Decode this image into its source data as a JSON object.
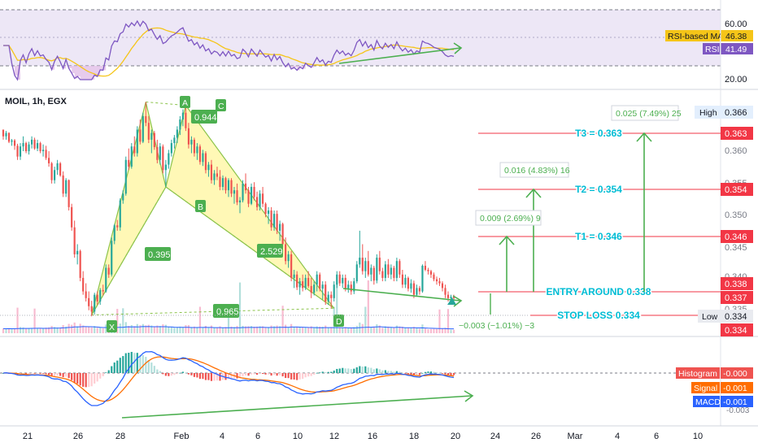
{
  "symbol": "MOIL, 1h, EGX",
  "colors": {
    "up": "#26a69a",
    "down": "#ef5350",
    "rsi": "#7e57c2",
    "rsi_ma": "#f5c518",
    "macd": "#2962ff",
    "signal": "#ff6d00",
    "harmonic_fill": "#fff59d",
    "harmonic_edge": "#8bc34a",
    "annotation_green": "#4caf50",
    "target_red": "#f23645",
    "label_cyan": "#00bcd4"
  },
  "rsi_panel": {
    "levels": [
      "60.00",
      "20.00"
    ],
    "labels": [
      {
        "name": "RSI-based MA",
        "value": "46.38"
      },
      {
        "name": "RSI",
        "value": "41.49"
      }
    ]
  },
  "price_axis_ticks": [
    "0.365",
    "0.360",
    "0.355",
    "0.350",
    "0.345",
    "0.340",
    "0.335"
  ],
  "price_tags": {
    "high": {
      "label": "High",
      "value": "0.366"
    },
    "low": {
      "label": "Low",
      "value": "0.334"
    },
    "t3": "0.363",
    "t2": "0.354",
    "t1": "0.346",
    "entry": "0.338",
    "current": "0.337",
    "stop": "0.334"
  },
  "levels_text": {
    "t3": "T3 = 0.363",
    "t2": "T2 = 0.354",
    "t1": "T1 = 0.346",
    "entry": "ENTRY AROUND 0.338",
    "stop": "STOP LOSS 0.334"
  },
  "measure_boxes": {
    "t3": "0.025 (7.49%) 25",
    "t2": "0.016 (4.83%) 16",
    "t1": "0.009 (2.69%) 9",
    "stop": "−0.003 (−1.01%) −3"
  },
  "pattern": {
    "points": [
      "X",
      "A",
      "B",
      "C",
      "D"
    ],
    "ratios": {
      "xb": "0.395",
      "ab_c": "0.944",
      "bd": "2.529",
      "xd": "0.965"
    }
  },
  "macd_panel": {
    "labels": [
      {
        "name": "Histogram",
        "value": "-0.000"
      },
      {
        "name": "Signal",
        "value": "-0.001"
      },
      {
        "name": "MACD",
        "value": "-0.001"
      }
    ],
    "axis_tail": "-0.003"
  },
  "x_axis_ticks": [
    "21",
    "26",
    "28",
    "Feb",
    "4",
    "6",
    "10",
    "12",
    "16",
    "18",
    "20",
    "24",
    "26",
    "Mar",
    "4",
    "6",
    "10"
  ],
  "chart_data": {
    "type": "candlestick",
    "title": "MOIL, 1h, EGX",
    "price_range": [
      0.333,
      0.367
    ],
    "timeline": "hourly candles from 21 Jan to 20 Feb (sequence index 0–159)",
    "pattern_points": [
      {
        "label": "X",
        "index": 31,
        "price": 0.3345
      },
      {
        "label": "A",
        "index": 50,
        "price": 0.3661
      },
      {
        "label": "B",
        "index": 57,
        "price": 0.3535
      },
      {
        "label": "C",
        "index": 64,
        "price": 0.3656
      },
      {
        "label": "D",
        "index": 116,
        "price": 0.3355
      }
    ],
    "candles": [
      [
        0.362,
        0.362,
        0.3605,
        0.361
      ],
      [
        0.361,
        0.3618,
        0.3605,
        0.3615
      ],
      [
        0.3615,
        0.3616,
        0.36,
        0.3602
      ],
      [
        0.3602,
        0.3606,
        0.3596,
        0.3604
      ],
      [
        0.3604,
        0.3606,
        0.359,
        0.3596
      ],
      [
        0.3596,
        0.3599,
        0.3575,
        0.358
      ],
      [
        0.358,
        0.36,
        0.3575,
        0.3595
      ],
      [
        0.3595,
        0.361,
        0.3588,
        0.36
      ],
      [
        0.36,
        0.3602,
        0.3585,
        0.3588
      ],
      [
        0.3588,
        0.3602,
        0.3583,
        0.3598
      ],
      [
        0.3598,
        0.361,
        0.3592,
        0.3605
      ],
      [
        0.3605,
        0.3608,
        0.359,
        0.3592
      ],
      [
        0.3592,
        0.3605,
        0.3588,
        0.36
      ],
      [
        0.36,
        0.3602,
        0.3585,
        0.3588
      ],
      [
        0.3588,
        0.3598,
        0.358,
        0.359
      ],
      [
        0.359,
        0.3596,
        0.3575,
        0.3578
      ],
      [
        0.3578,
        0.3588,
        0.3565,
        0.357
      ],
      [
        0.357,
        0.3572,
        0.354,
        0.3545
      ],
      [
        0.3545,
        0.3565,
        0.354,
        0.356
      ],
      [
        0.356,
        0.3575,
        0.3553,
        0.357
      ],
      [
        0.357,
        0.3572,
        0.355,
        0.3552
      ],
      [
        0.3552,
        0.3558,
        0.352,
        0.3525
      ],
      [
        0.3525,
        0.3548,
        0.352,
        0.3545
      ],
      [
        0.3545,
        0.3546,
        0.35,
        0.3505
      ],
      [
        0.3505,
        0.351,
        0.347,
        0.3475
      ],
      [
        0.3475,
        0.3485,
        0.343,
        0.3435
      ],
      [
        0.3435,
        0.345,
        0.342,
        0.344
      ],
      [
        0.344,
        0.3442,
        0.3395,
        0.34
      ],
      [
        0.34,
        0.341,
        0.3375,
        0.338
      ],
      [
        0.338,
        0.3392,
        0.3365,
        0.337
      ],
      [
        0.337,
        0.338,
        0.3352,
        0.3358
      ],
      [
        0.3358,
        0.3366,
        0.3343,
        0.335
      ],
      [
        0.335,
        0.3378,
        0.3346,
        0.3375
      ],
      [
        0.3375,
        0.338,
        0.336,
        0.3365
      ],
      [
        0.3365,
        0.3385,
        0.336,
        0.3382
      ],
      [
        0.3382,
        0.339,
        0.3374,
        0.338
      ],
      [
        0.338,
        0.342,
        0.3378,
        0.3415
      ],
      [
        0.3415,
        0.342,
        0.34,
        0.3405
      ],
      [
        0.3405,
        0.346,
        0.3402,
        0.3455
      ],
      [
        0.3455,
        0.348,
        0.345,
        0.3478
      ],
      [
        0.3478,
        0.3486,
        0.347,
        0.3475
      ],
      [
        0.3475,
        0.3518,
        0.347,
        0.3515
      ],
      [
        0.3515,
        0.353,
        0.351,
        0.3525
      ],
      [
        0.3525,
        0.358,
        0.3522,
        0.3575
      ],
      [
        0.3575,
        0.3592,
        0.356,
        0.3565
      ],
      [
        0.3565,
        0.36,
        0.3562,
        0.3595
      ],
      [
        0.3595,
        0.361,
        0.358,
        0.3585
      ],
      [
        0.3585,
        0.3625,
        0.358,
        0.362
      ],
      [
        0.362,
        0.3635,
        0.3598,
        0.3602
      ],
      [
        0.3602,
        0.3645,
        0.36,
        0.364
      ],
      [
        0.364,
        0.3661,
        0.3625,
        0.363
      ],
      [
        0.363,
        0.364,
        0.36,
        0.3605
      ],
      [
        0.3605,
        0.362,
        0.3585,
        0.3615
      ],
      [
        0.3615,
        0.3618,
        0.359,
        0.3594
      ],
      [
        0.3594,
        0.3605,
        0.357,
        0.3575
      ],
      [
        0.3575,
        0.36,
        0.3568,
        0.3595
      ],
      [
        0.3595,
        0.3598,
        0.3555,
        0.356
      ],
      [
        0.356,
        0.3575,
        0.3535,
        0.3568
      ],
      [
        0.3568,
        0.359,
        0.3562,
        0.3585
      ],
      [
        0.3585,
        0.3605,
        0.358,
        0.36
      ],
      [
        0.36,
        0.3612,
        0.3592,
        0.3608
      ],
      [
        0.3608,
        0.3625,
        0.36,
        0.362
      ],
      [
        0.362,
        0.364,
        0.3612,
        0.3635
      ],
      [
        0.3635,
        0.365,
        0.3625,
        0.3645
      ],
      [
        0.3645,
        0.3656,
        0.3618,
        0.3622
      ],
      [
        0.3622,
        0.363,
        0.3592,
        0.3598
      ],
      [
        0.3598,
        0.361,
        0.3585,
        0.3605
      ],
      [
        0.3605,
        0.3608,
        0.358,
        0.3585
      ],
      [
        0.3585,
        0.36,
        0.3575,
        0.3595
      ],
      [
        0.3595,
        0.3598,
        0.3568,
        0.3572
      ],
      [
        0.3572,
        0.359,
        0.3566,
        0.3585
      ],
      [
        0.3585,
        0.3588,
        0.3555,
        0.356
      ],
      [
        0.356,
        0.3572,
        0.355,
        0.3568
      ],
      [
        0.3568,
        0.3575,
        0.354,
        0.3545
      ],
      [
        0.3545,
        0.356,
        0.3538,
        0.3555
      ],
      [
        0.3555,
        0.3565,
        0.3545,
        0.355
      ],
      [
        0.355,
        0.356,
        0.353,
        0.3535
      ],
      [
        0.3535,
        0.3552,
        0.353,
        0.3548
      ],
      [
        0.3548,
        0.355,
        0.3525,
        0.353
      ],
      [
        0.353,
        0.3548,
        0.352,
        0.3545
      ],
      [
        0.3545,
        0.3548,
        0.352,
        0.3525
      ],
      [
        0.3525,
        0.3535,
        0.351,
        0.353
      ],
      [
        0.353,
        0.354,
        0.3508,
        0.3512
      ],
      [
        0.3512,
        0.352,
        0.3496,
        0.3515
      ],
      [
        0.3515,
        0.3545,
        0.3512,
        0.354
      ],
      [
        0.354,
        0.3555,
        0.3525,
        0.353
      ],
      [
        0.353,
        0.3535,
        0.3505,
        0.351
      ],
      [
        0.351,
        0.354,
        0.3508,
        0.3535
      ],
      [
        0.3535,
        0.3542,
        0.3515,
        0.352
      ],
      [
        0.352,
        0.3528,
        0.35,
        0.3505
      ],
      [
        0.3505,
        0.353,
        0.35,
        0.3525
      ],
      [
        0.3525,
        0.3535,
        0.3505,
        0.351
      ],
      [
        0.351,
        0.3512,
        0.349,
        0.3495
      ],
      [
        0.3495,
        0.3505,
        0.348,
        0.35
      ],
      [
        0.35,
        0.3505,
        0.347,
        0.3475
      ],
      [
        0.3475,
        0.35,
        0.347,
        0.3495
      ],
      [
        0.3495,
        0.35,
        0.3465,
        0.347
      ],
      [
        0.347,
        0.3485,
        0.3455,
        0.348
      ],
      [
        0.348,
        0.3482,
        0.3445,
        0.345
      ],
      [
        0.345,
        0.346,
        0.342,
        0.3425
      ],
      [
        0.3425,
        0.344,
        0.3415,
        0.3435
      ],
      [
        0.3435,
        0.344,
        0.3395,
        0.34
      ],
      [
        0.34,
        0.3412,
        0.3385,
        0.3405
      ],
      [
        0.3405,
        0.341,
        0.3382,
        0.3386
      ],
      [
        0.3386,
        0.34,
        0.3375,
        0.3395
      ],
      [
        0.3395,
        0.3405,
        0.338,
        0.3385
      ],
      [
        0.3385,
        0.3405,
        0.3382,
        0.34
      ],
      [
        0.34,
        0.341,
        0.3385,
        0.3388
      ],
      [
        0.3388,
        0.34,
        0.337,
        0.3378
      ],
      [
        0.3378,
        0.3395,
        0.3374,
        0.339
      ],
      [
        0.339,
        0.341,
        0.338,
        0.3405
      ],
      [
        0.3405,
        0.3408,
        0.338,
        0.3384
      ],
      [
        0.3384,
        0.3395,
        0.3368,
        0.339
      ],
      [
        0.339,
        0.3395,
        0.336,
        0.3365
      ],
      [
        0.3365,
        0.338,
        0.336,
        0.3375
      ],
      [
        0.3375,
        0.338,
        0.3355,
        0.337
      ],
      [
        0.337,
        0.3395,
        0.3365,
        0.339
      ],
      [
        0.339,
        0.341,
        0.3385,
        0.3405
      ],
      [
        0.3405,
        0.341,
        0.3388,
        0.3392
      ],
      [
        0.3392,
        0.3405,
        0.3385,
        0.34
      ],
      [
        0.34,
        0.3405,
        0.338,
        0.3384
      ],
      [
        0.3384,
        0.3396,
        0.3378,
        0.339
      ],
      [
        0.339,
        0.3395,
        0.3375,
        0.338
      ],
      [
        0.338,
        0.34,
        0.3376,
        0.3395
      ],
      [
        0.3395,
        0.3425,
        0.3392,
        0.342
      ],
      [
        0.342,
        0.347,
        0.3415,
        0.343
      ],
      [
        0.343,
        0.345,
        0.3405,
        0.341
      ],
      [
        0.341,
        0.343,
        0.34,
        0.3425
      ],
      [
        0.3425,
        0.344,
        0.3402,
        0.3405
      ],
      [
        0.3405,
        0.342,
        0.3395,
        0.3415
      ],
      [
        0.3415,
        0.3418,
        0.339,
        0.3396
      ],
      [
        0.3396,
        0.3435,
        0.3392,
        0.343
      ],
      [
        0.343,
        0.344,
        0.3405,
        0.341
      ],
      [
        0.341,
        0.3415,
        0.3395,
        0.34
      ],
      [
        0.34,
        0.3425,
        0.3395,
        0.342
      ],
      [
        0.342,
        0.3428,
        0.34,
        0.3405
      ],
      [
        0.3405,
        0.342,
        0.3398,
        0.3415
      ],
      [
        0.3415,
        0.3418,
        0.3395,
        0.34
      ],
      [
        0.34,
        0.343,
        0.3395,
        0.3425
      ],
      [
        0.3425,
        0.3428,
        0.34,
        0.3405
      ],
      [
        0.3405,
        0.3412,
        0.3385,
        0.339
      ],
      [
        0.339,
        0.3405,
        0.3385,
        0.34
      ],
      [
        0.34,
        0.3402,
        0.338,
        0.3384
      ],
      [
        0.3384,
        0.3398,
        0.3378,
        0.3392
      ],
      [
        0.3392,
        0.3396,
        0.337,
        0.3375
      ],
      [
        0.3375,
        0.339,
        0.3372,
        0.3385
      ],
      [
        0.3385,
        0.3388,
        0.3375,
        0.338
      ],
      [
        0.338,
        0.342,
        0.3378,
        0.3418
      ],
      [
        0.3418,
        0.3425,
        0.341,
        0.3412
      ],
      [
        0.3412,
        0.3415,
        0.3405,
        0.341
      ],
      [
        0.341,
        0.3412,
        0.34,
        0.3405
      ],
      [
        0.3405,
        0.3408,
        0.3395,
        0.3398
      ],
      [
        0.3398,
        0.3402,
        0.339,
        0.3395
      ],
      [
        0.3395,
        0.34,
        0.3388,
        0.3392
      ],
      [
        0.3392,
        0.3395,
        0.338,
        0.3385
      ],
      [
        0.3385,
        0.339,
        0.337,
        0.3375
      ],
      [
        0.3375,
        0.338,
        0.3365,
        0.337
      ],
      [
        0.337,
        0.3375,
        0.3368,
        0.3372
      ],
      [
        0.3372,
        0.3375,
        0.3368,
        0.337
      ]
    ]
  }
}
